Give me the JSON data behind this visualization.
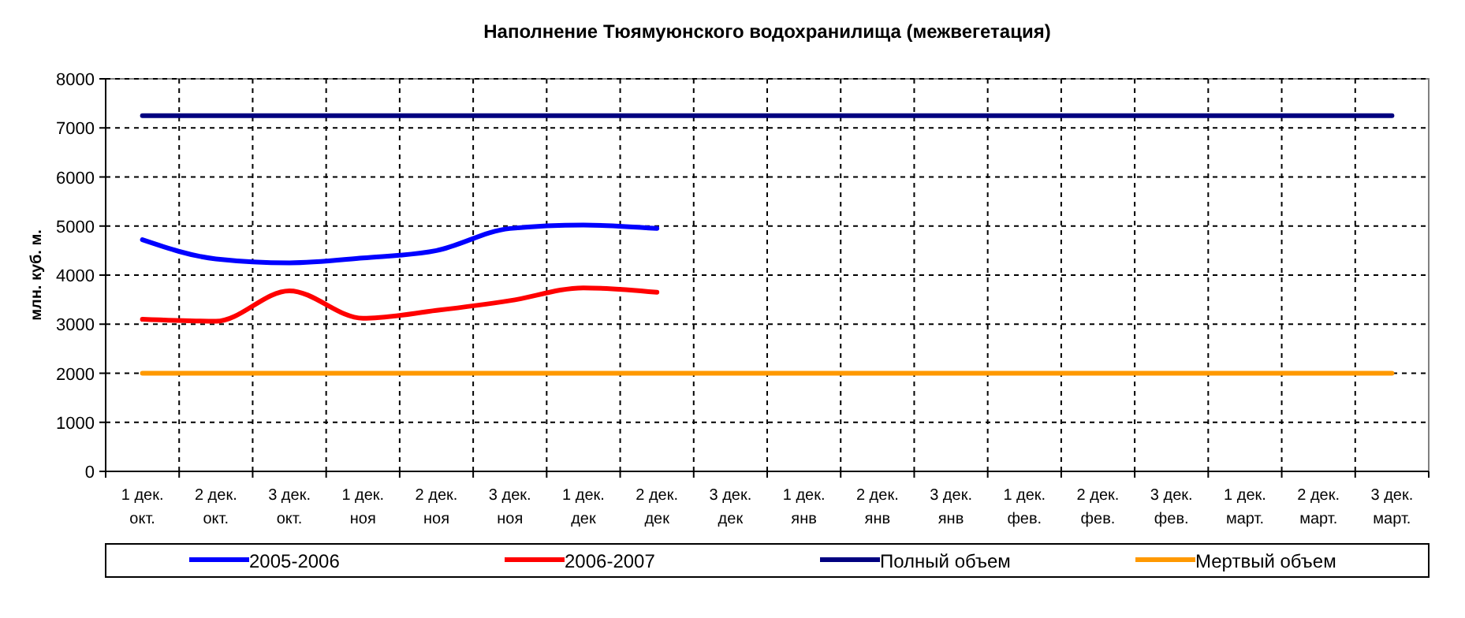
{
  "chart_data": {
    "type": "line",
    "title": "Наполнение Тюямуюнского водохранилища (межвегетация)",
    "ylabel": "млн. куб. м.",
    "categories": [
      "1 дек.\nокт.",
      "2 дек.\nокт.",
      "3 дек.\nокт.",
      "1 дек.\nноя",
      "2 дек.\nноя",
      "3 дек.\nноя",
      "1 дек.\nдек",
      "2 дек.\nдек",
      "3 дек.\nдек",
      "1 дек.\nянв",
      "2 дек.\nянв",
      "3 дек.\nянв",
      "1 дек.\nфев.",
      "2 дек.\nфев.",
      "3 дек.\nфев.",
      "1 дек.\nмарт.",
      "2 дек.\nмарт.",
      "3 дек.\nмарт."
    ],
    "series": [
      {
        "name": "2005-2006",
        "color": "#0000ff",
        "values": [
          4720,
          4330,
          4250,
          4350,
          4500,
          4950,
          5020,
          4950,
          null,
          null,
          null,
          null,
          null,
          null,
          null,
          null,
          null,
          null
        ]
      },
      {
        "name": "2006-2007",
        "color": "#ff0000",
        "values": [
          3100,
          3060,
          3680,
          3120,
          3280,
          3480,
          3740,
          3650,
          null,
          null,
          null,
          null,
          null,
          null,
          null,
          null,
          null,
          null
        ]
      },
      {
        "name": "Полный объем",
        "color": "#000080",
        "values": [
          7250,
          7250,
          7250,
          7250,
          7250,
          7250,
          7250,
          7250,
          7250,
          7250,
          7250,
          7250,
          7250,
          7250,
          7250,
          7250,
          7250,
          7250
        ]
      },
      {
        "name": "Мертвый объем",
        "color": "#ff9900",
        "values": [
          2000,
          2000,
          2000,
          2000,
          2000,
          2000,
          2000,
          2000,
          2000,
          2000,
          2000,
          2000,
          2000,
          2000,
          2000,
          2000,
          2000,
          2000
        ]
      }
    ],
    "ylim": [
      0,
      8000
    ],
    "yticks": [
      0,
      1000,
      2000,
      3000,
      4000,
      5000,
      6000,
      7000,
      8000
    ],
    "grid": true,
    "legend": "bottom",
    "marker": "none",
    "line_style": "solid"
  }
}
